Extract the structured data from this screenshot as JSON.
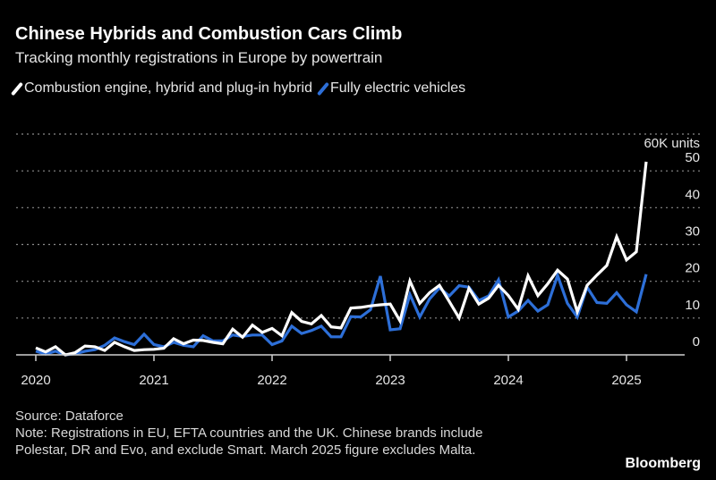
{
  "chart_data": {
    "type": "line",
    "title": "Chinese Hybrids and Combustion Cars Climb",
    "subtitle": "Tracking monthly registrations in Europe by powertrain",
    "unit_label": "60K units",
    "ylim": [
      0,
      60
    ],
    "y_ticks": [
      0,
      10,
      20,
      30,
      40,
      50
    ],
    "y_tick_labels": [
      "0",
      "10",
      "20",
      "30",
      "40",
      "50"
    ],
    "x_ticks": [
      "2020",
      "2021",
      "2022",
      "2023",
      "2024",
      "2025"
    ],
    "x_start": "2020-01",
    "x_frequency": "monthly",
    "grid": true,
    "legend_placement": "top-left",
    "series": [
      {
        "name": "Combustion engine, hybrid and plug-in hybrid",
        "color": "#ffffff",
        "values": [
          1.9,
          0.8,
          2.2,
          0,
          0.6,
          2.4,
          2.2,
          1.2,
          3.4,
          2.2,
          1.2,
          1.4,
          1.5,
          1.8,
          4.4,
          3.0,
          4.0,
          3.9,
          3.4,
          3.0,
          7.0,
          4.8,
          8.1,
          6.1,
          7.2,
          5.2,
          11.5,
          9.1,
          8.4,
          10.7,
          7.6,
          7.3,
          12.7,
          12.9,
          13.3,
          13.6,
          13.8,
          9.2,
          20.1,
          14.0,
          16.9,
          18.9,
          14.5,
          10.0,
          18.1,
          13.8,
          15.4,
          18.9,
          16.1,
          12.4,
          21.5,
          16.1,
          19.3,
          23.0,
          20.6,
          11.7,
          18.9,
          21.7,
          24.3,
          32.1,
          25.8,
          28.0,
          52.5
        ]
      },
      {
        "name": "Fully electric vehicles",
        "color": "#2d6fd8",
        "values": [
          1.0,
          0.2,
          1.0,
          0,
          0.3,
          1.0,
          1.4,
          2.6,
          4.6,
          3.6,
          2.8,
          5.6,
          2.8,
          2.2,
          3.4,
          2.6,
          2.2,
          5.2,
          3.8,
          3.8,
          5.4,
          5.0,
          5.4,
          5.4,
          2.8,
          3.8,
          7.8,
          5.8,
          6.6,
          7.8,
          4.9,
          4.9,
          10.4,
          10.3,
          12.3,
          21.4,
          6.8,
          7.1,
          16.4,
          10.3,
          15.2,
          18.2,
          16.0,
          18.8,
          18.4,
          14.8,
          16.0,
          20.4,
          10.3,
          11.9,
          14.8,
          11.9,
          13.6,
          21.6,
          14.0,
          10.3,
          18.4,
          14.2,
          14.0,
          16.9,
          13.6,
          11.7,
          21.9
        ]
      }
    ]
  },
  "footer": {
    "source": "Source: Dataforce",
    "note": "Note: Registrations in EU, EFTA countries and the UK. Chinese brands include Polestar, DR and Evo, and exclude Smart. March 2025 figure excludes Malta."
  },
  "logo": "Bloomberg"
}
